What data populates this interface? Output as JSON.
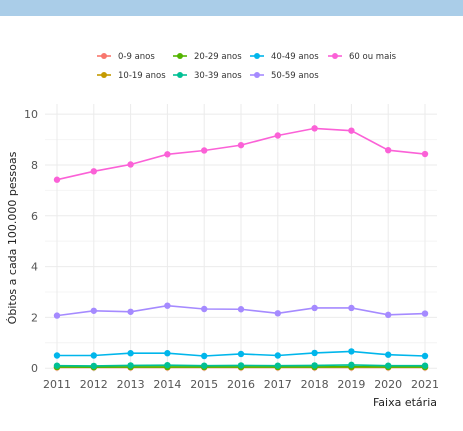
{
  "chart_data": {
    "type": "line",
    "title": "",
    "xlabel": "Faixa etária",
    "ylabel": "Óbitos a cada 100.000 pessoas",
    "x": [
      2011,
      2012,
      2013,
      2014,
      2015,
      2016,
      2017,
      2018,
      2019,
      2020,
      2021
    ],
    "xticks": [
      "2011",
      "2012",
      "2013",
      "2014",
      "2015",
      "2016",
      "2017",
      "2018",
      "2019",
      "2020",
      "2021"
    ],
    "yticks": [
      "0",
      "2",
      "4",
      "6",
      "8",
      "10"
    ],
    "ylim": [
      -0.15,
      10.4
    ],
    "grid": true,
    "legend_position": "top",
    "series": [
      {
        "name": "0-9 anos",
        "color": "#f8766d",
        "values": [
          0.03,
          0.03,
          0.03,
          0.03,
          0.03,
          0.03,
          0.03,
          0.03,
          0.03,
          0.03,
          0.03
        ]
      },
      {
        "name": "10-19 anos",
        "color": "#c49a00",
        "values": [
          0.04,
          0.04,
          0.04,
          0.04,
          0.04,
          0.04,
          0.04,
          0.04,
          0.04,
          0.04,
          0.04
        ]
      },
      {
        "name": "20-29 anos",
        "color": "#53b400",
        "values": [
          0.05,
          0.04,
          0.05,
          0.05,
          0.05,
          0.05,
          0.05,
          0.05,
          0.06,
          0.05,
          0.05
        ]
      },
      {
        "name": "30-39 anos",
        "color": "#00c094",
        "values": [
          0.1,
          0.09,
          0.11,
          0.12,
          0.1,
          0.11,
          0.1,
          0.11,
          0.13,
          0.1,
          0.1
        ]
      },
      {
        "name": "40-49 anos",
        "color": "#00b6eb",
        "values": [
          0.5,
          0.5,
          0.59,
          0.59,
          0.48,
          0.56,
          0.5,
          0.6,
          0.66,
          0.53,
          0.48
        ]
      },
      {
        "name": "50-59 anos",
        "color": "#a58aff",
        "values": [
          2.07,
          2.26,
          2.22,
          2.46,
          2.33,
          2.32,
          2.16,
          2.37,
          2.37,
          2.1,
          2.15
        ]
      },
      {
        "name": "60 ou mais",
        "color": "#fb61d7",
        "values": [
          7.42,
          7.75,
          8.02,
          8.42,
          8.57,
          8.78,
          9.16,
          9.44,
          9.35,
          8.58,
          8.43
        ]
      }
    ]
  }
}
